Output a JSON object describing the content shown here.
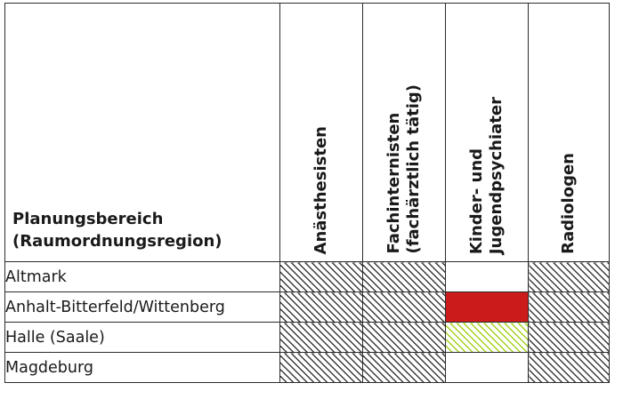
{
  "header": {
    "region_title": [
      "Planungsbereich",
      "(Raumordnungsregion)"
    ],
    "specialties": [
      [
        "Anästhesisten"
      ],
      [
        "Fachinternisten",
        "(fachärztlich tätig)"
      ],
      [
        "Kinder- und",
        "Jugendpsychiater"
      ],
      [
        "Radiologen"
      ]
    ]
  },
  "rows": [
    {
      "region": "Altmark",
      "cells": [
        "hatch-gray",
        "hatch-gray",
        "empty",
        "hatch-gray"
      ]
    },
    {
      "region": "Anhalt-Bitterfeld/Wittenberg",
      "cells": [
        "hatch-gray",
        "hatch-gray",
        "solid-red",
        "hatch-gray"
      ]
    },
    {
      "region": "Halle (Saale)",
      "cells": [
        "hatch-gray",
        "hatch-gray",
        "hatch-green",
        "hatch-gray"
      ]
    },
    {
      "region": "Magdeburg",
      "cells": [
        "hatch-gray",
        "hatch-gray",
        "empty",
        "hatch-gray"
      ]
    }
  ],
  "colors": {
    "hatch-gray": "#3a3a3a",
    "solid-red": "#cc1b1b",
    "hatch-green": "#a4d21e",
    "border": "#2b2b2b"
  }
}
